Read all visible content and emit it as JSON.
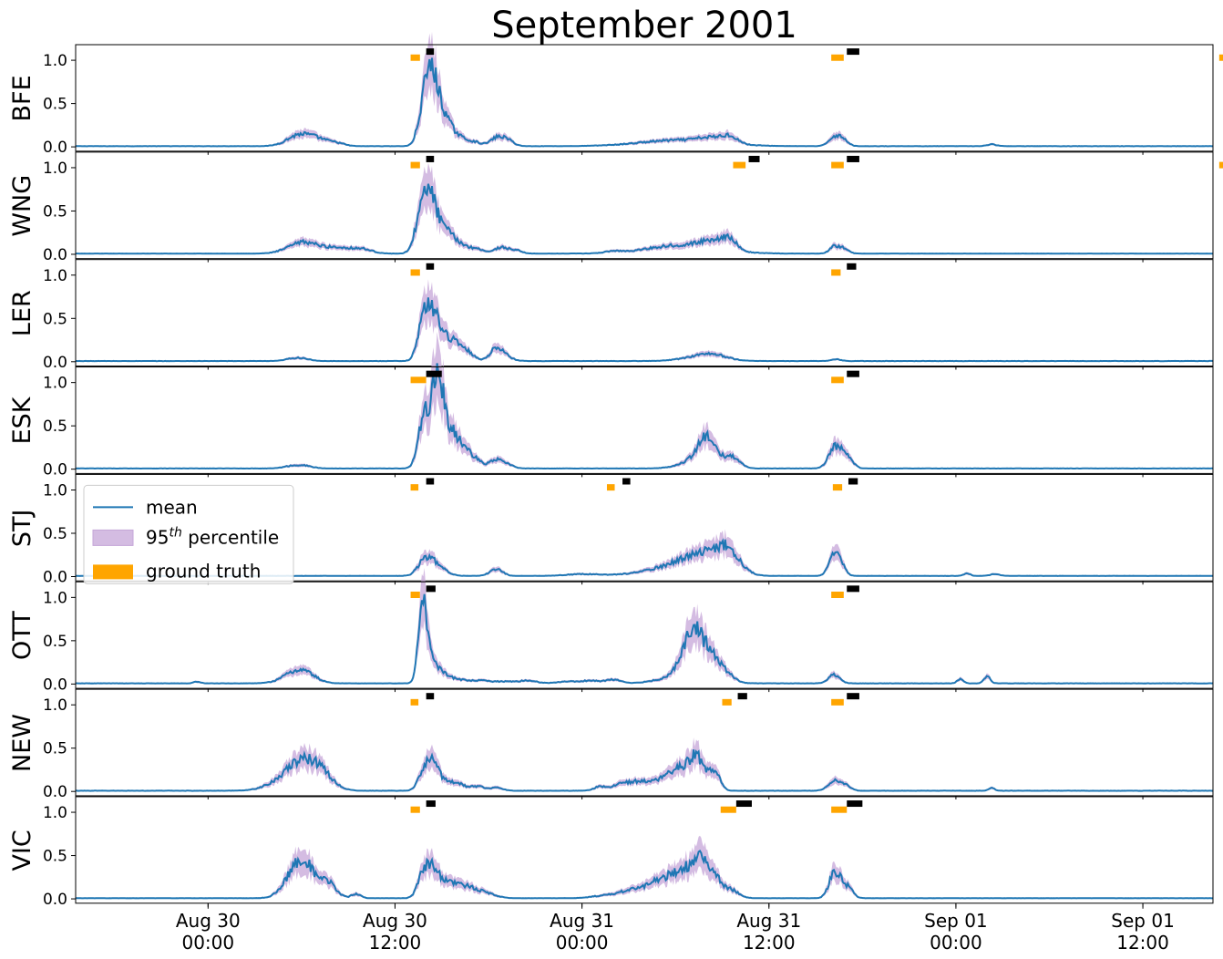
{
  "chart_data": {
    "type": "line",
    "title": "September 2001",
    "x_unit": "hours from Aug 30 00:00",
    "xlim": [
      -8.5,
      64.5
    ],
    "ylim": [
      -0.05,
      1.18
    ],
    "yticks": [
      "0.0",
      "0.5",
      "1.0"
    ],
    "xticks": [
      {
        "t": 0,
        "line1": "Aug 30",
        "line2": "00:00"
      },
      {
        "t": 12,
        "line1": "Aug 30",
        "line2": "12:00"
      },
      {
        "t": 24,
        "line1": "Aug 31",
        "line2": "00:00"
      },
      {
        "t": 36,
        "line1": "Aug 31",
        "line2": "12:00"
      },
      {
        "t": 48,
        "line1": "Sep 01",
        "line2": "00:00"
      },
      {
        "t": 60,
        "line1": "Sep 01",
        "line2": "12:00"
      }
    ],
    "legend": {
      "position": "upper left (STJ panel)",
      "entries": [
        {
          "key": "mean",
          "label": "mean"
        },
        {
          "key": "band",
          "label": "95",
          "sup": "th",
          "suffix": " percentile"
        },
        {
          "key": "truth",
          "label": "ground truth"
        }
      ]
    },
    "colors": {
      "mean": "#1f77b4",
      "band": "#c5a6d8",
      "truth": "#ffa500",
      "prediction": "#000000"
    },
    "panels": [
      {
        "station": "BFE",
        "truth": [
          [
            13.0,
            13.6
          ],
          [
            40.0,
            40.8
          ],
          [
            64.9,
            65.4
          ]
        ],
        "pred": [
          [
            14.0,
            14.5
          ],
          [
            41.0,
            41.8
          ],
          [
            65.9,
            66.4
          ]
        ],
        "peaks": [
          [
            5.5,
            0.07,
            0.7
          ],
          [
            6.3,
            0.09,
            0.7
          ],
          [
            7.3,
            0.05,
            0.6
          ],
          [
            8.3,
            0.03,
            0.5
          ],
          [
            13.8,
            0.35,
            0.35
          ],
          [
            14.3,
            0.55,
            0.35
          ],
          [
            14.8,
            0.35,
            0.5
          ],
          [
            15.6,
            0.15,
            0.8
          ],
          [
            17.2,
            0.03,
            0.4
          ],
          [
            18.5,
            0.09,
            0.4
          ],
          [
            19.2,
            0.07,
            0.4
          ],
          [
            30.3,
            0.07,
            2.5
          ],
          [
            32.3,
            0.05,
            0.8
          ],
          [
            33.5,
            0.08,
            0.5
          ],
          [
            40.2,
            0.11,
            0.35
          ],
          [
            40.8,
            0.07,
            0.3
          ],
          [
            50.3,
            0.02,
            0.3
          ]
        ]
      },
      {
        "station": "WNG",
        "truth": [
          [
            13.0,
            13.6
          ],
          [
            33.7,
            34.5
          ],
          [
            40.0,
            40.8
          ],
          [
            64.9,
            65.4
          ]
        ],
        "pred": [
          [
            14.0,
            14.5
          ],
          [
            34.7,
            35.4
          ],
          [
            41.0,
            41.8
          ],
          [
            65.9,
            66.4
          ]
        ],
        "peaks": [
          [
            5.5,
            0.06,
            0.8
          ],
          [
            6.3,
            0.08,
            0.7
          ],
          [
            7.5,
            0.05,
            0.8
          ],
          [
            8.8,
            0.05,
            0.8
          ],
          [
            10.0,
            0.04,
            0.6
          ],
          [
            13.7,
            0.45,
            0.4
          ],
          [
            14.3,
            0.42,
            0.35
          ],
          [
            14.9,
            0.22,
            0.6
          ],
          [
            15.8,
            0.12,
            0.9
          ],
          [
            17.4,
            0.03,
            0.4
          ],
          [
            18.8,
            0.07,
            0.4
          ],
          [
            19.7,
            0.04,
            0.4
          ],
          [
            26.0,
            0.02,
            0.5
          ],
          [
            30.5,
            0.1,
            2.2
          ],
          [
            32.3,
            0.06,
            0.8
          ],
          [
            33.0,
            0.05,
            0.7
          ],
          [
            33.5,
            0.1,
            0.4
          ],
          [
            40.2,
            0.08,
            0.3
          ],
          [
            40.8,
            0.06,
            0.3
          ]
        ]
      },
      {
        "station": "LER",
        "truth": [
          [
            13.0,
            13.6
          ],
          [
            40.0,
            40.6
          ]
        ],
        "pred": [
          [
            14.0,
            14.5
          ],
          [
            41.0,
            41.6
          ]
        ],
        "peaks": [
          [
            5.5,
            0.03,
            0.5
          ],
          [
            6.2,
            0.02,
            0.4
          ],
          [
            13.8,
            0.45,
            0.35
          ],
          [
            14.4,
            0.4,
            0.35
          ],
          [
            15.0,
            0.22,
            0.5
          ],
          [
            15.8,
            0.15,
            0.7
          ],
          [
            16.5,
            0.06,
            0.5
          ],
          [
            18.5,
            0.13,
            0.4
          ],
          [
            19.0,
            0.05,
            0.5
          ],
          [
            31.8,
            0.06,
            1.2
          ],
          [
            32.5,
            0.03,
            0.8
          ],
          [
            40.3,
            0.02,
            0.3
          ]
        ]
      },
      {
        "station": "ESK",
        "truth": [
          [
            13.0,
            14.0
          ]
        ],
        "pred": [
          [
            14.0,
            15.0
          ],
          [
            41.0,
            41.8
          ]
        ],
        "truth_extra": [
          [
            40.0,
            40.8
          ]
        ],
        "peaks": [
          [
            5.5,
            0.03,
            0.6
          ],
          [
            6.3,
            0.02,
            0.5
          ],
          [
            13.8,
            0.5,
            0.35
          ],
          [
            14.5,
            0.65,
            0.35
          ],
          [
            14.9,
            0.55,
            0.3
          ],
          [
            15.5,
            0.3,
            0.5
          ],
          [
            16.2,
            0.18,
            0.7
          ],
          [
            17.0,
            0.06,
            0.6
          ],
          [
            18.5,
            0.09,
            0.4
          ],
          [
            19.2,
            0.04,
            0.4
          ],
          [
            31.5,
            0.12,
            1.0
          ],
          [
            32.0,
            0.25,
            0.5
          ],
          [
            33.0,
            0.04,
            0.6
          ],
          [
            33.5,
            0.08,
            0.4
          ],
          [
            34.0,
            0.05,
            0.4
          ],
          [
            40.2,
            0.22,
            0.4
          ],
          [
            40.8,
            0.1,
            0.4
          ],
          [
            41.2,
            0.05,
            0.3
          ]
        ]
      },
      {
        "station": "STJ",
        "truth": [
          [
            13.0,
            13.5
          ],
          [
            25.6,
            26.1
          ],
          [
            40.1,
            40.7
          ]
        ],
        "pred": [
          [
            14.0,
            14.5
          ],
          [
            26.6,
            27.1
          ],
          [
            41.1,
            41.7
          ]
        ],
        "peaks": [
          [
            13.8,
            0.15,
            0.4
          ],
          [
            14.4,
            0.12,
            0.4
          ],
          [
            15.0,
            0.06,
            0.5
          ],
          [
            18.5,
            0.08,
            0.4
          ],
          [
            24.0,
            0.02,
            1.0
          ],
          [
            29.5,
            0.06,
            2.0
          ],
          [
            31.0,
            0.12,
            1.4
          ],
          [
            32.4,
            0.15,
            1.2
          ],
          [
            33.4,
            0.2,
            0.7
          ],
          [
            40.2,
            0.22,
            0.35
          ],
          [
            40.6,
            0.1,
            0.3
          ],
          [
            48.7,
            0.03,
            0.2
          ],
          [
            50.5,
            0.02,
            0.3
          ]
        ]
      },
      {
        "station": "OTT",
        "truth": [
          [
            13.0,
            13.6
          ],
          [
            40.0,
            40.8
          ]
        ],
        "pred": [
          [
            14.0,
            14.6
          ],
          [
            41.0,
            41.8
          ]
        ],
        "peaks": [
          [
            -0.7,
            0.02,
            0.2
          ],
          [
            5.5,
            0.1,
            0.8
          ],
          [
            6.3,
            0.08,
            0.7
          ],
          [
            13.7,
            0.68,
            0.25
          ],
          [
            14.0,
            0.4,
            0.25
          ],
          [
            14.5,
            0.15,
            0.4
          ],
          [
            15.0,
            0.08,
            0.5
          ],
          [
            16.0,
            0.04,
            0.6
          ],
          [
            17.5,
            0.03,
            0.6
          ],
          [
            19.0,
            0.02,
            0.6
          ],
          [
            20.5,
            0.03,
            0.6
          ],
          [
            23.0,
            0.02,
            0.6
          ],
          [
            24.5,
            0.03,
            0.6
          ],
          [
            26.0,
            0.04,
            0.5
          ],
          [
            29.5,
            0.05,
            1.0
          ],
          [
            30.7,
            0.3,
            0.6
          ],
          [
            31.3,
            0.35,
            0.5
          ],
          [
            32.0,
            0.2,
            0.5
          ],
          [
            32.5,
            0.15,
            0.5
          ],
          [
            33.3,
            0.1,
            0.5
          ],
          [
            40.2,
            0.1,
            0.35
          ],
          [
            48.3,
            0.05,
            0.2
          ],
          [
            50.0,
            0.08,
            0.2
          ]
        ]
      },
      {
        "station": "NEW",
        "truth": [
          [
            13.0,
            13.5
          ],
          [
            33.0,
            33.6
          ],
          [
            40.0,
            40.8
          ]
        ],
        "pred": [
          [
            14.0,
            14.5
          ],
          [
            34.0,
            34.6
          ],
          [
            41.0,
            41.8
          ]
        ],
        "peaks": [
          [
            5.5,
            0.2,
            1.2
          ],
          [
            6.5,
            0.2,
            0.9
          ],
          [
            7.5,
            0.08,
            0.7
          ],
          [
            13.8,
            0.18,
            0.35
          ],
          [
            14.4,
            0.28,
            0.35
          ],
          [
            15.0,
            0.1,
            0.5
          ],
          [
            16.0,
            0.08,
            0.5
          ],
          [
            17.3,
            0.05,
            0.4
          ],
          [
            18.5,
            0.04,
            0.4
          ],
          [
            25.2,
            0.05,
            0.4
          ],
          [
            26.4,
            0.08,
            0.4
          ],
          [
            27.2,
            0.06,
            0.4
          ],
          [
            28.0,
            0.08,
            0.6
          ],
          [
            29.5,
            0.12,
            0.8
          ],
          [
            30.5,
            0.2,
            0.7
          ],
          [
            31.3,
            0.25,
            0.4
          ],
          [
            32.0,
            0.15,
            0.5
          ],
          [
            32.6,
            0.15,
            0.3
          ],
          [
            40.2,
            0.12,
            0.4
          ],
          [
            41.0,
            0.05,
            0.3
          ],
          [
            50.3,
            0.03,
            0.2
          ]
        ]
      },
      {
        "station": "VIC",
        "truth": [
          [
            13.0,
            13.6
          ],
          [
            32.9,
            33.9
          ],
          [
            40.0,
            41.0
          ]
        ],
        "pred": [
          [
            14.0,
            14.6
          ],
          [
            33.9,
            34.9
          ],
          [
            41.0,
            42.0
          ]
        ],
        "peaks": [
          [
            5.5,
            0.25,
            0.7
          ],
          [
            6.3,
            0.3,
            0.6
          ],
          [
            7.7,
            0.18,
            0.5
          ],
          [
            9.5,
            0.05,
            0.3
          ],
          [
            13.8,
            0.25,
            0.35
          ],
          [
            14.4,
            0.25,
            0.35
          ],
          [
            15.0,
            0.15,
            0.6
          ],
          [
            16.0,
            0.12,
            0.6
          ],
          [
            17.0,
            0.08,
            0.6
          ],
          [
            18.0,
            0.04,
            0.6
          ],
          [
            25.5,
            0.03,
            0.8
          ],
          [
            27.0,
            0.07,
            0.7
          ],
          [
            28.5,
            0.1,
            0.8
          ],
          [
            29.8,
            0.18,
            1.0
          ],
          [
            31.0,
            0.25,
            0.8
          ],
          [
            31.7,
            0.3,
            0.4
          ],
          [
            32.5,
            0.2,
            0.4
          ],
          [
            33.5,
            0.1,
            0.5
          ],
          [
            40.2,
            0.28,
            0.35
          ],
          [
            40.8,
            0.1,
            0.35
          ],
          [
            41.2,
            0.06,
            0.3
          ]
        ]
      }
    ]
  }
}
